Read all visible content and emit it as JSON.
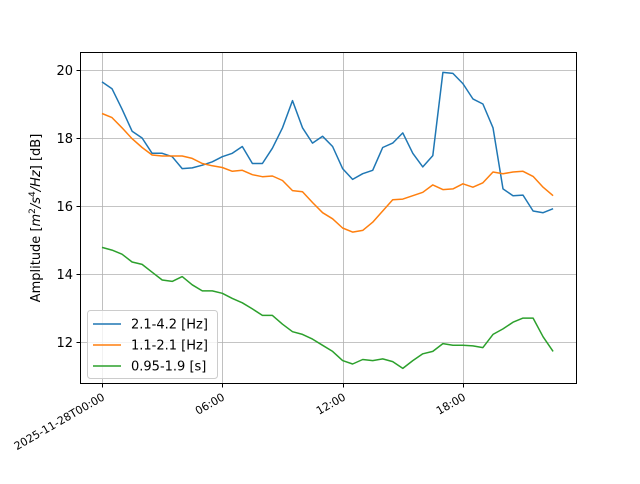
{
  "chart_data": {
    "type": "line",
    "title": "",
    "xlabel": "",
    "ylabel": "Amplitude [m²/s⁴/Hz] [dB]",
    "ylabel_parts": {
      "prefix": "Amplitude [",
      "m": "m",
      "exp2": "2",
      "s": "/s",
      "exp4": "4",
      "hz": "/Hz",
      "suffix": "] [dB]"
    },
    "x_unit": "hours since 2025-11-28T00:00",
    "x_start_hour": 0,
    "x_step_hours": 0.5,
    "xlim": [
      -1.1,
      23.7
    ],
    "ylim": [
      10.76,
      20.53
    ],
    "grid": true,
    "legend_position": "lower-left",
    "x_ticks": [
      {
        "hour": 0,
        "label": "2025-11-28T00:00"
      },
      {
        "hour": 6,
        "label": "06:00"
      },
      {
        "hour": 12,
        "label": "12:00"
      },
      {
        "hour": 18,
        "label": "18:00"
      }
    ],
    "y_ticks": [
      12,
      14,
      16,
      18,
      20
    ],
    "series": [
      {
        "name": "2.1-4.2 [Hz]",
        "color": "#1f77b4",
        "values": [
          19.65,
          19.45,
          18.85,
          18.2,
          18.0,
          17.55,
          17.55,
          17.45,
          17.1,
          17.12,
          17.2,
          17.3,
          17.45,
          17.55,
          17.75,
          17.25,
          17.25,
          17.7,
          18.3,
          19.1,
          18.3,
          17.85,
          18.05,
          17.75,
          17.1,
          16.78,
          16.95,
          17.05,
          17.72,
          17.85,
          18.15,
          17.55,
          17.15,
          17.48,
          19.93,
          19.9,
          19.6,
          19.15,
          19.0,
          18.3,
          16.5,
          16.3,
          16.32,
          15.85,
          15.8,
          15.92
        ]
      },
      {
        "name": "1.1-2.1 [Hz]",
        "color": "#ff7f0e",
        "values": [
          18.72,
          18.6,
          18.3,
          17.98,
          17.72,
          17.5,
          17.47,
          17.47,
          17.47,
          17.4,
          17.25,
          17.18,
          17.13,
          17.02,
          17.05,
          16.92,
          16.86,
          16.88,
          16.75,
          16.45,
          16.42,
          16.1,
          15.8,
          15.62,
          15.35,
          15.23,
          15.28,
          15.52,
          15.85,
          16.18,
          16.2,
          16.3,
          16.4,
          16.62,
          16.48,
          16.5,
          16.65,
          16.55,
          16.68,
          17.0,
          16.95,
          17.0,
          17.02,
          16.87,
          16.55,
          16.3
        ]
      },
      {
        "name": "0.95-1.9 [s]",
        "color": "#2ca02c",
        "values": [
          14.78,
          14.7,
          14.58,
          14.35,
          14.28,
          14.05,
          13.82,
          13.78,
          13.92,
          13.68,
          13.5,
          13.5,
          13.43,
          13.28,
          13.15,
          12.97,
          12.78,
          12.78,
          12.52,
          12.3,
          12.22,
          12.08,
          11.9,
          11.72,
          11.45,
          11.35,
          11.48,
          11.45,
          11.5,
          11.42,
          11.22,
          11.45,
          11.65,
          11.72,
          11.95,
          11.9,
          11.9,
          11.88,
          11.83,
          12.22,
          12.38,
          12.58,
          12.7,
          12.7,
          12.15,
          11.72
        ]
      }
    ]
  }
}
